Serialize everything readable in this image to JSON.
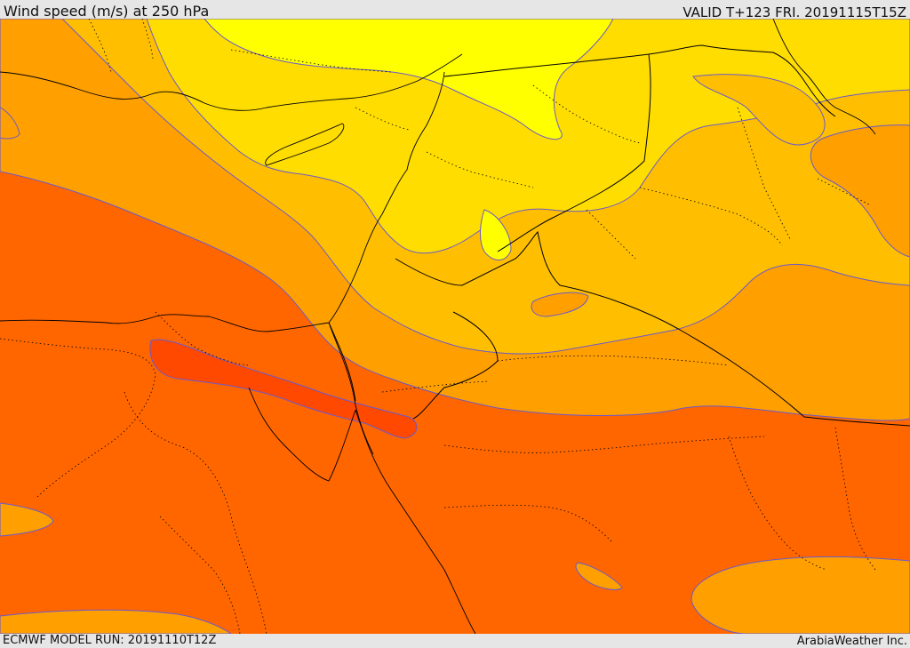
{
  "header": {
    "title": "Wind speed (m/s) at 250 hPa",
    "valid": "VALID T+123 FRI. 20191115T15Z"
  },
  "footer": {
    "model_run": "ECMWF MODEL RUN: 20191110T12Z",
    "credit": "ArabiaWeather Inc."
  },
  "map": {
    "shading_colors": {
      "level_1": "#ffff00",
      "level_2": "#ffdd00",
      "level_3": "#ffbf00",
      "level_4": "#ff9f00",
      "level_5": "#ff6600",
      "level_6": "#ff4800"
    },
    "contour_color": "#6a5acd",
    "border_color": "#000000"
  }
}
